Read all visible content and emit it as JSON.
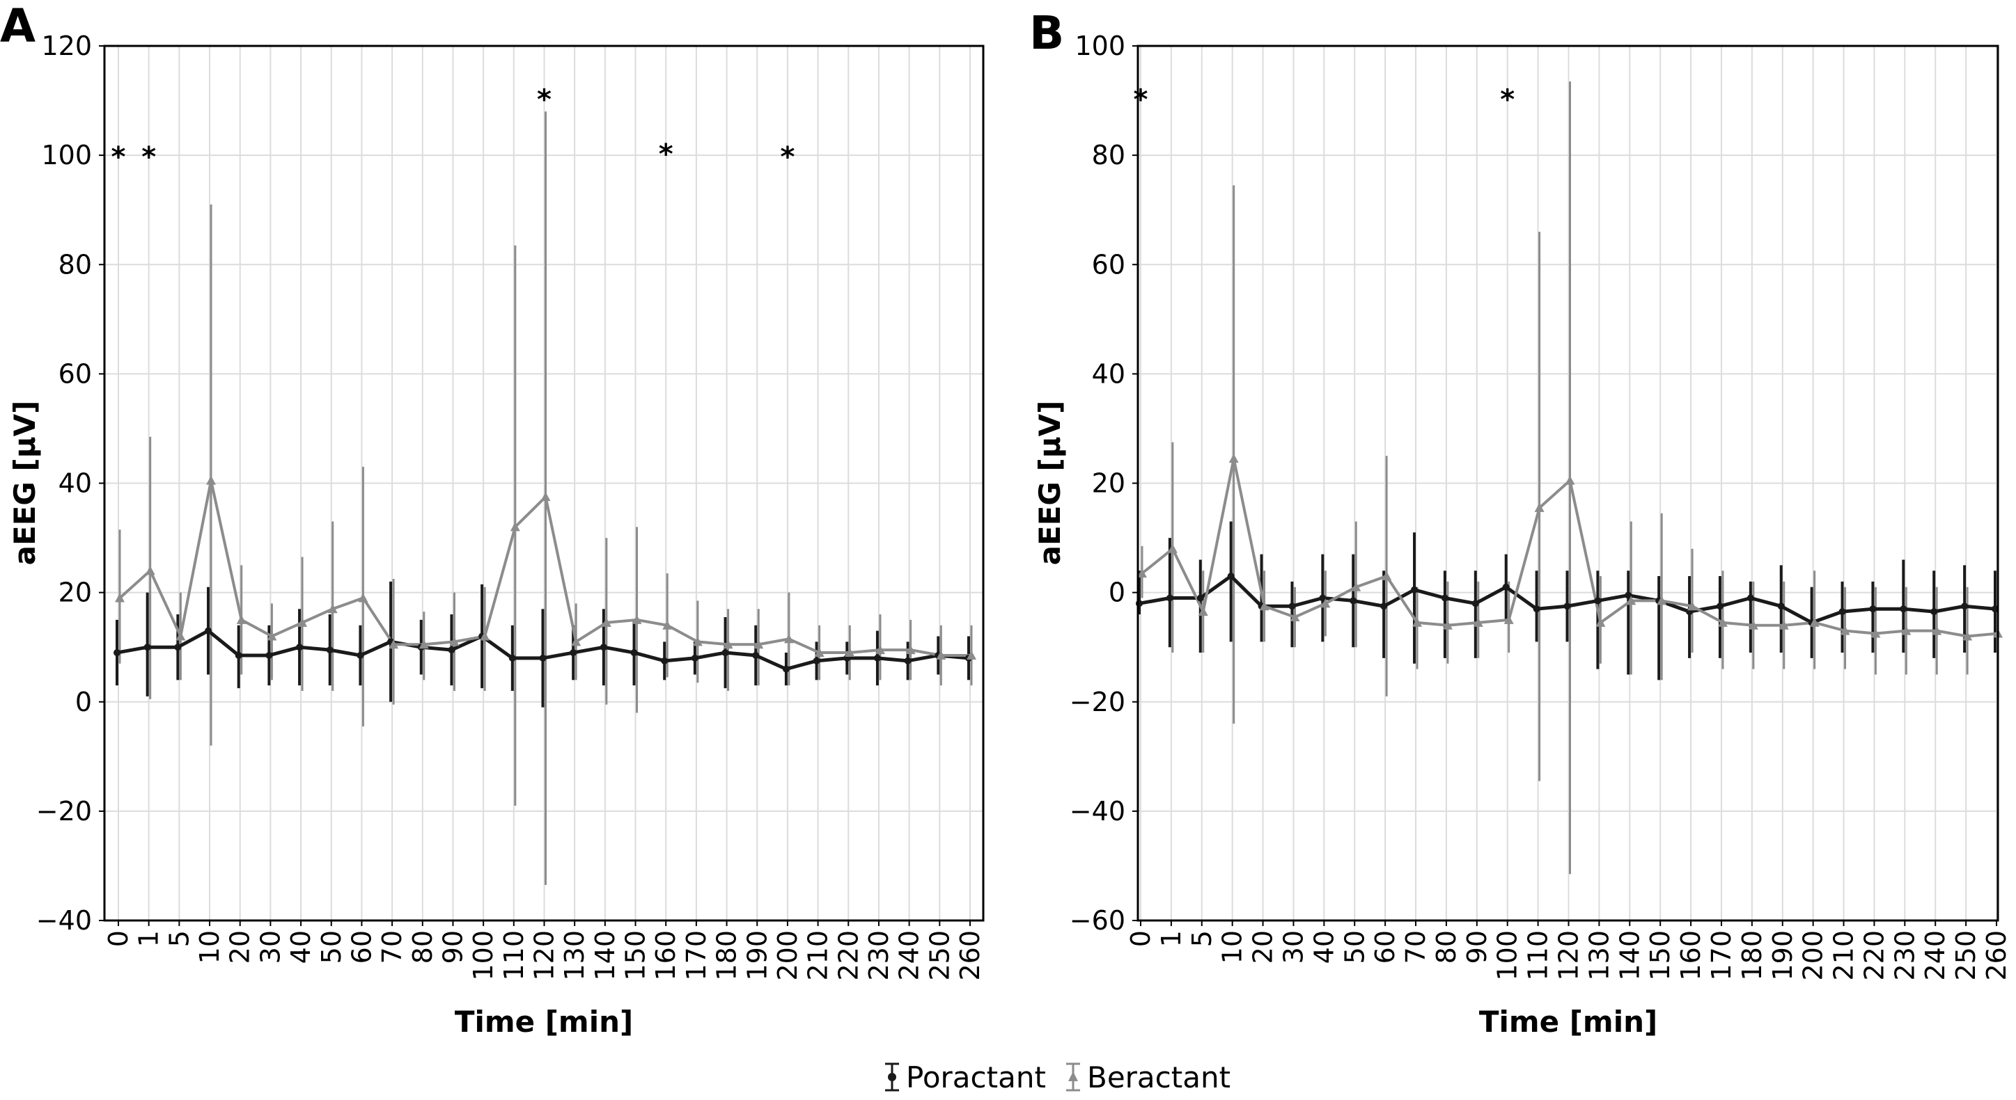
{
  "chart_data": [
    {
      "panel": "A",
      "type": "line",
      "xlabel": "Time [min]",
      "ylabel": "aEEG [μV]",
      "ylim": [
        -40,
        120
      ],
      "yticks": [
        -40,
        -20,
        0,
        20,
        40,
        60,
        80,
        100,
        120
      ],
      "grid": true,
      "categories": [
        "0",
        "1",
        "5",
        "10",
        "20",
        "30",
        "40",
        "50",
        "60",
        "70",
        "80",
        "90",
        "100",
        "110",
        "120",
        "130",
        "140",
        "150",
        "160",
        "170",
        "180",
        "190",
        "200",
        "210",
        "220",
        "230",
        "240",
        "250",
        "260"
      ],
      "series": [
        {
          "name": "Poractant",
          "color": "#1a1a1a",
          "mean": [
            9,
            10,
            10,
            13,
            8.5,
            8.5,
            10,
            9.5,
            8.5,
            11,
            10,
            9.5,
            12,
            8,
            8,
            9,
            10,
            9,
            7.5,
            8,
            9,
            8.5,
            6,
            7.5,
            8,
            8,
            7.5,
            8.5,
            8
          ],
          "lower": [
            3,
            1,
            4,
            5,
            2.5,
            3,
            3,
            3,
            3,
            0,
            5,
            3,
            2.5,
            2,
            -1,
            4,
            3,
            3,
            4,
            5,
            2.5,
            3,
            3,
            4,
            5,
            3,
            4,
            5,
            4
          ],
          "upper": [
            15,
            20,
            16,
            21,
            14,
            14,
            17,
            16,
            14,
            22,
            15,
            16,
            21.5,
            14,
            17,
            14,
            17,
            15,
            11,
            11,
            15.5,
            14,
            9,
            11,
            11,
            13,
            11,
            12,
            12
          ]
        },
        {
          "name": "Beractant",
          "color": "#8c8c8c",
          "mean": [
            19,
            24,
            12,
            40.5,
            15,
            12,
            14.5,
            17,
            19,
            10.5,
            10.5,
            11,
            12,
            32,
            37.5,
            11,
            14.5,
            15,
            14,
            11,
            10.5,
            10.5,
            11.5,
            9,
            9,
            9.5,
            9.5,
            8.5,
            8.5
          ],
          "lower": [
            7,
            0.5,
            4,
            -8,
            5,
            4,
            2,
            2,
            -4.5,
            -0.5,
            4,
            2,
            2,
            -19,
            -33.5,
            4,
            -0.5,
            -2,
            4.5,
            3.5,
            2,
            3,
            3,
            4,
            4,
            4,
            4,
            3,
            3
          ],
          "upper": [
            31.5,
            48.5,
            20,
            91,
            25,
            18,
            26.5,
            33,
            43,
            22.5,
            16.5,
            20,
            21,
            83.5,
            108,
            18,
            30,
            32,
            23.5,
            18.5,
            17,
            17,
            20,
            14,
            14,
            16,
            15,
            14,
            14
          ]
        }
      ],
      "significance_markers": [
        "*",
        "*",
        "*",
        "*",
        "*"
      ],
      "significance_at": [
        "0",
        "1",
        "120",
        "160",
        "200"
      ],
      "significance_y": [
        100,
        100,
        110.5,
        100.5,
        100
      ]
    },
    {
      "panel": "B",
      "type": "line",
      "xlabel": "Time [min]",
      "ylabel": "aEEG [μV]",
      "ylim": [
        -60,
        100
      ],
      "yticks": [
        -60,
        -40,
        -20,
        0,
        20,
        40,
        60,
        80,
        100
      ],
      "grid": true,
      "categories": [
        "0",
        "1",
        "5",
        "10",
        "20",
        "30",
        "40",
        "50",
        "60",
        "70",
        "80",
        "90",
        "100",
        "110",
        "120",
        "130",
        "140",
        "150",
        "160",
        "170",
        "180",
        "190",
        "200",
        "210",
        "220",
        "230",
        "240",
        "250",
        "260"
      ],
      "series": [
        {
          "name": "Poractant",
          "color": "#1a1a1a",
          "mean": [
            -2,
            -1,
            -1,
            3,
            -2.5,
            -2.5,
            -1,
            -1.5,
            -2.5,
            0.5,
            -1,
            -2,
            1,
            -3,
            -2.5,
            -1.5,
            -0.5,
            -1.5,
            -3.5,
            -2.5,
            -1,
            -2.5,
            -5.5,
            -3.5,
            -3,
            -3,
            -3.5,
            -2.5,
            -3
          ],
          "lower": [
            -4,
            -10,
            -11,
            -9,
            -9,
            -10,
            -9,
            -10,
            -12,
            -13,
            -12,
            -12,
            -5,
            -9,
            -9,
            -14,
            -15,
            -16,
            -12,
            -12,
            -11,
            -11,
            -12,
            -11,
            -11,
            -11,
            -12,
            -11,
            -11
          ],
          "upper": [
            4,
            10,
            6,
            13,
            7,
            2,
            7,
            7,
            4,
            11,
            4,
            4,
            7,
            4,
            4,
            4,
            4,
            3,
            3,
            3,
            2,
            5,
            1,
            2,
            2,
            6,
            4,
            5,
            4
          ]
        },
        {
          "name": "Beractant",
          "color": "#8c8c8c",
          "mean": [
            3.5,
            8,
            -3.5,
            24.5,
            -2.5,
            -4.5,
            -2,
            1,
            3,
            -5.5,
            -6,
            -5.5,
            -5,
            15.5,
            20.5,
            -5.5,
            -1.5,
            -1.5,
            -2.5,
            -5.5,
            -6,
            -6,
            -5.5,
            -7,
            -7.5,
            -7,
            -7,
            -8,
            -7.5
          ],
          "lower": [
            -1,
            -11,
            -11,
            -24,
            -9,
            -10,
            -8,
            -10,
            -19,
            -14,
            -13,
            -12,
            -11,
            -34.5,
            -51.5,
            -13,
            -15,
            -16,
            -11,
            -14,
            -14,
            -14,
            -14,
            -14,
            -15,
            -15,
            -15,
            -15,
            -15
          ],
          "upper": [
            8.5,
            27.5,
            4,
            74.5,
            4,
            1,
            4,
            13,
            25,
            1,
            2,
            2,
            2,
            66,
            93.5,
            3,
            13,
            14.5,
            8,
            4,
            2,
            2,
            4,
            1,
            1,
            1,
            1,
            1,
            0
          ]
        }
      ],
      "significance_markers": [
        "*",
        "*"
      ],
      "significance_at": [
        "0",
        "100"
      ],
      "significance_y": [
        90.5,
        90.5
      ]
    }
  ],
  "legend": {
    "items": [
      {
        "label": "Poractant",
        "color": "#1a1a1a",
        "marker": "circle"
      },
      {
        "label": "Beractant",
        "color": "#8c8c8c",
        "marker": "triangle"
      }
    ]
  }
}
